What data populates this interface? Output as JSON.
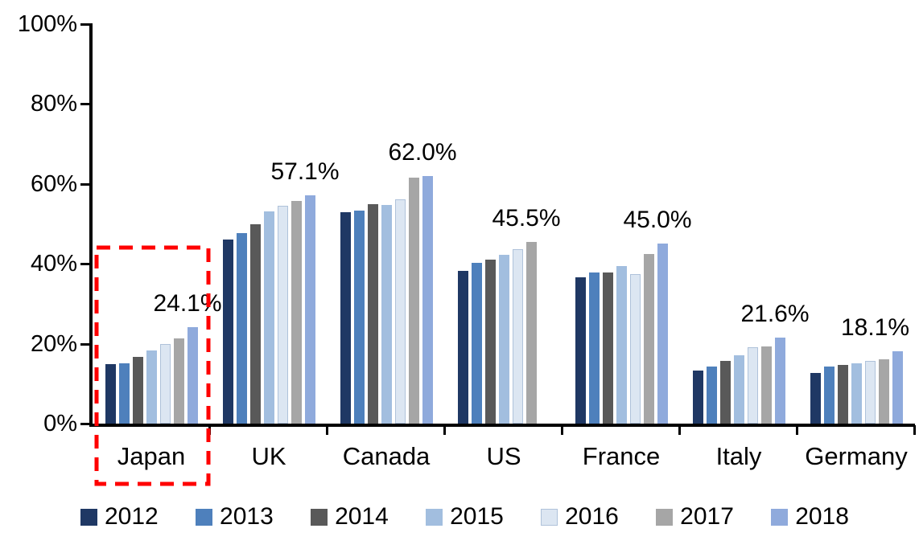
{
  "chart_data": {
    "type": "bar",
    "title": "",
    "xlabel": "",
    "ylabel": "",
    "categories": [
      "Japan",
      "UK",
      "Canada",
      "US",
      "France",
      "Italy",
      "Germany"
    ],
    "series": [
      {
        "name": "2012",
        "color": "#1F3864",
        "values": [
          14.8,
          46.0,
          52.9,
          38.3,
          36.7,
          13.3,
          12.7
        ]
      },
      {
        "name": "2013",
        "color": "#4E80BC",
        "values": [
          15.0,
          47.6,
          53.3,
          40.2,
          37.8,
          14.3,
          14.2
        ]
      },
      {
        "name": "2014",
        "color": "#595959",
        "values": [
          16.8,
          49.8,
          55.0,
          41.0,
          37.8,
          15.6,
          14.6
        ]
      },
      {
        "name": "2015",
        "color": "#A2BEDF",
        "values": [
          18.3,
          53.2,
          54.8,
          42.2,
          39.5,
          17.1,
          15.0
        ]
      },
      {
        "name": "2016",
        "color": "#DCE6F2",
        "values": [
          20.0,
          54.6,
          56.2,
          43.7,
          37.5,
          19.2,
          15.6
        ]
      },
      {
        "name": "2017",
        "color": "#A6A6A6",
        "values": [
          21.3,
          55.7,
          61.5,
          45.5,
          42.4,
          19.4,
          16.0
        ]
      },
      {
        "name": "2018",
        "color": "#8FAADC",
        "values": [
          24.1,
          57.1,
          62.0,
          null,
          45.0,
          21.6,
          18.1
        ]
      }
    ],
    "data_labels": [
      "24.1%",
      "57.1%",
      "62.0%",
      "45.5%",
      "45.0%",
      "21.6%",
      "18.1%"
    ],
    "yticks": [
      "0%",
      "20%",
      "40%",
      "60%",
      "80%",
      "100%"
    ],
    "ytick_values": [
      0,
      20,
      40,
      60,
      80,
      100
    ],
    "ylim": [
      0,
      100
    ],
    "grid": false,
    "legend_position": "bottom",
    "legend_entries": [
      "2012",
      "2013",
      "2014",
      "2015",
      "2016",
      "2017",
      "2018"
    ],
    "annotations": [
      {
        "type": "highlight-box",
        "target": "Japan",
        "color": "#FF0000",
        "style": "dashed"
      }
    ]
  }
}
